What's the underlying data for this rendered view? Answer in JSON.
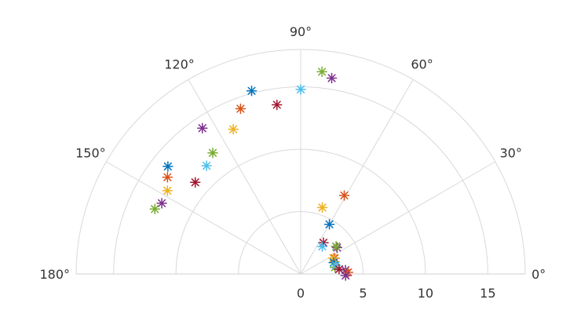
{
  "chart_data": {
    "type": "scatter",
    "polar": true,
    "angular_range_deg": [
      0,
      180
    ],
    "radial_range": [
      0,
      18
    ],
    "grid": true,
    "angular_ticks": [
      {
        "deg": 0,
        "label": "0°"
      },
      {
        "deg": 30,
        "label": "30°"
      },
      {
        "deg": 60,
        "label": "60°"
      },
      {
        "deg": 90,
        "label": "90°"
      },
      {
        "deg": 120,
        "label": "120°"
      },
      {
        "deg": 150,
        "label": "150°"
      },
      {
        "deg": 180,
        "label": "180°"
      }
    ],
    "radial_ticks": [
      {
        "value": 0,
        "label": "0"
      },
      {
        "value": 5,
        "label": "5"
      },
      {
        "value": 10,
        "label": "10"
      },
      {
        "value": 15,
        "label": "15"
      }
    ],
    "radial_grid": [
      5,
      10,
      15,
      18
    ],
    "marker": "asterisk",
    "colors": [
      "#0072BD",
      "#D95319",
      "#EDB120",
      "#7E2F8E",
      "#77AC30",
      "#4DBEEE",
      "#A2142F"
    ],
    "points": [
      {
        "theta": 84,
        "r": 16.3,
        "c": 4
      },
      {
        "theta": 81,
        "r": 15.9,
        "c": 3
      },
      {
        "theta": 90,
        "r": 14.8,
        "c": 5
      },
      {
        "theta": 105,
        "r": 15.2,
        "c": 0
      },
      {
        "theta": 110,
        "r": 14.1,
        "c": 1
      },
      {
        "theta": 98,
        "r": 13.7,
        "c": 6
      },
      {
        "theta": 115,
        "r": 12.8,
        "c": 2
      },
      {
        "theta": 124,
        "r": 14.1,
        "c": 3
      },
      {
        "theta": 126,
        "r": 12.0,
        "c": 4
      },
      {
        "theta": 131,
        "r": 11.5,
        "c": 5
      },
      {
        "theta": 141,
        "r": 13.7,
        "c": 0
      },
      {
        "theta": 144,
        "r": 13.2,
        "c": 1
      },
      {
        "theta": 139,
        "r": 11.2,
        "c": 6
      },
      {
        "theta": 148,
        "r": 12.6,
        "c": 2
      },
      {
        "theta": 153,
        "r": 12.5,
        "c": 3
      },
      {
        "theta": 156,
        "r": 12.8,
        "c": 4
      },
      {
        "theta": 61,
        "r": 7.2,
        "c": 1
      },
      {
        "theta": 72,
        "r": 5.6,
        "c": 2
      },
      {
        "theta": 60,
        "r": 4.6,
        "c": 0
      },
      {
        "theta": 54,
        "r": 3.1,
        "c": 6
      },
      {
        "theta": 36,
        "r": 3.6,
        "c": 3
      },
      {
        "theta": 38,
        "r": 3.6,
        "c": 4
      },
      {
        "theta": 52,
        "r": 2.8,
        "c": 5
      },
      {
        "theta": 25,
        "r": 3.0,
        "c": 1
      },
      {
        "theta": 26,
        "r": 2.9,
        "c": 2
      },
      {
        "theta": 19,
        "r": 2.8,
        "c": 0
      },
      {
        "theta": 11,
        "r": 2.8,
        "c": 4
      },
      {
        "theta": 14,
        "r": 2.9,
        "c": 5
      },
      {
        "theta": 7,
        "r": 3.1,
        "c": 6
      },
      {
        "theta": 5,
        "r": 3.6,
        "c": 3
      },
      {
        "theta": 2,
        "r": 3.8,
        "c": 1
      },
      {
        "theta": -2,
        "r": 3.6,
        "c": 3
      }
    ]
  }
}
